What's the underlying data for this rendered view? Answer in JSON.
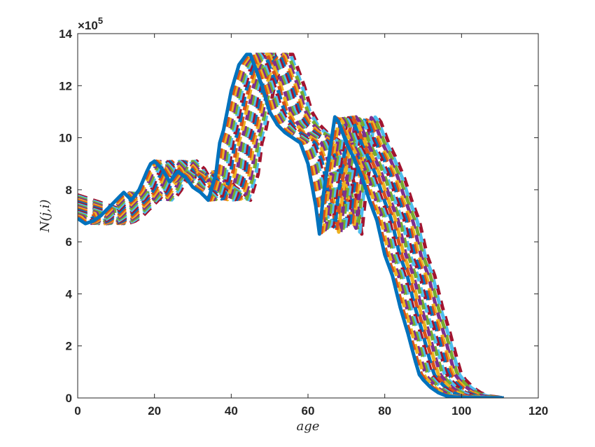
{
  "chart_data": {
    "type": "line",
    "xlabel": "age",
    "ylabel": "N(j,i)",
    "y_exponent_label": "×10",
    "y_exponent_power": "5",
    "xlim": [
      0,
      120
    ],
    "ylim": [
      0,
      14
    ],
    "x_ticks": [
      0,
      20,
      40,
      60,
      80,
      100,
      120
    ],
    "y_ticks": [
      0,
      2,
      4,
      6,
      8,
      10,
      12,
      14
    ],
    "x_tick_labels": [
      "0",
      "20",
      "40",
      "60",
      "80",
      "100",
      "120"
    ],
    "y_tick_labels": [
      "0",
      "2",
      "4",
      "6",
      "8",
      "10",
      "12",
      "14"
    ],
    "grid": false,
    "line_styles": [
      "solid",
      "dashed",
      "dashed",
      "dashed",
      "dashed",
      "dashed",
      "dashed",
      "dashed",
      "dashed",
      "dashed",
      "dashed",
      "dashed",
      "dashed",
      "dashed",
      "dashed",
      "dashed",
      "dashed",
      "dashed",
      "dashed",
      "dashed",
      "dashed"
    ],
    "colors": [
      "#0072BD",
      "#D95319",
      "#EDB120",
      "#7E2F8E",
      "#77AC30",
      "#4DBEEE",
      "#A2142F"
    ],
    "base_curve": {
      "x": [
        0,
        2,
        4,
        6,
        8,
        10,
        12,
        14,
        16,
        18,
        19,
        20,
        22,
        24,
        26,
        28,
        30,
        32,
        34,
        36,
        37,
        38,
        40,
        42,
        44,
        45,
        46,
        48,
        50,
        52,
        54,
        56,
        58,
        60,
        62,
        63,
        64,
        66,
        67,
        68,
        70,
        72,
        74,
        76,
        78,
        80,
        82,
        84,
        86,
        88,
        89,
        90,
        92,
        94,
        96,
        98,
        100,
        102,
        104,
        106,
        108,
        110,
        111
      ],
      "y": [
        6.9,
        6.7,
        6.8,
        7.0,
        7.3,
        7.6,
        7.9,
        7.6,
        8.0,
        8.7,
        9.0,
        9.1,
        8.8,
        8.3,
        8.7,
        8.5,
        8.1,
        7.9,
        7.6,
        8.6,
        9.8,
        10.3,
        11.8,
        12.8,
        13.2,
        13.2,
        12.8,
        12.0,
        11.0,
        10.5,
        10.2,
        10.0,
        9.8,
        9.0,
        7.4,
        6.3,
        7.8,
        9.8,
        10.8,
        10.6,
        9.8,
        9.2,
        8.5,
        7.6,
        6.8,
        5.5,
        4.7,
        3.5,
        2.5,
        1.4,
        0.9,
        0.7,
        0.4,
        0.2,
        0.08,
        0.04,
        0.02,
        0.01,
        0.01,
        0.005,
        0.003,
        0.001,
        0.0
      ]
    },
    "series_count": 21,
    "age_shift_per_series": 0.55,
    "first_series_value_at_age_0": 6.9,
    "last_series_value_at_age_0": 7.8
  }
}
